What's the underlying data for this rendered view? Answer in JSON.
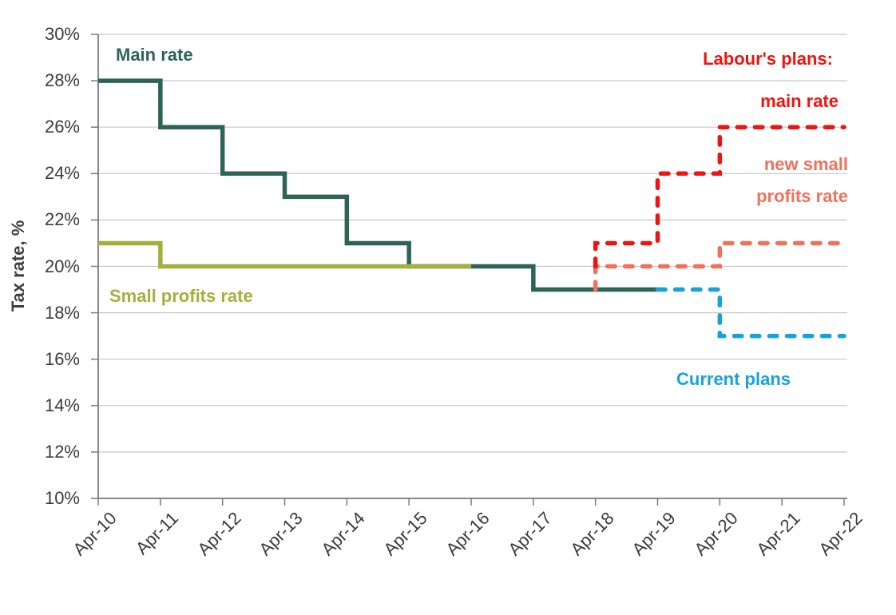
{
  "chart_data": {
    "type": "line",
    "subtype": "step-after",
    "title": "",
    "xlabel": "",
    "ylabel": "Tax rate, %",
    "ylim": [
      10,
      30
    ],
    "y_tick_step": 2,
    "grid": true,
    "y_tick_labels": [
      "30%",
      "28%",
      "26%",
      "24%",
      "22%",
      "20%",
      "18%",
      "16%",
      "14%",
      "12%",
      "10%"
    ],
    "categories": [
      "Apr-10",
      "Apr-11",
      "Apr-12",
      "Apr-13",
      "Apr-14",
      "Apr-15",
      "Apr-16",
      "Apr-17",
      "Apr-18",
      "Apr-19",
      "Apr-20",
      "Apr-21",
      "Apr-22"
    ],
    "series": [
      {
        "name": "Main rate",
        "color": "#2e6456",
        "style": "solid",
        "points": [
          [
            0,
            28
          ],
          [
            1,
            26
          ],
          [
            2,
            24
          ],
          [
            3,
            23
          ],
          [
            4,
            21
          ],
          [
            5,
            20
          ],
          [
            7,
            19
          ],
          [
            9,
            19
          ]
        ]
      },
      {
        "name": "Small profits rate",
        "color": "#a2b13d",
        "style": "solid",
        "points": [
          [
            0,
            21
          ],
          [
            1,
            20
          ],
          [
            6,
            20
          ]
        ]
      },
      {
        "name": "Current plans",
        "color": "#16a3dd",
        "style": "dashed",
        "points": [
          [
            9,
            19
          ],
          [
            10,
            17
          ],
          [
            12,
            17
          ]
        ]
      },
      {
        "name": "Labour's plans: new small profits rate",
        "color": "#f0715c",
        "style": "dashed",
        "points": [
          [
            8,
            19
          ],
          [
            8,
            20
          ],
          [
            10,
            21
          ],
          [
            12,
            21
          ]
        ]
      },
      {
        "name": "Labour's plans: main rate",
        "color": "#ee1411",
        "style": "dashed",
        "points": [
          [
            8,
            20
          ],
          [
            8,
            21
          ],
          [
            9,
            24
          ],
          [
            10,
            26
          ],
          [
            12,
            26
          ]
        ]
      }
    ],
    "legend_position": "none",
    "axis_color": "#7a7a7a",
    "grid_color": "#c6c6c6"
  },
  "annotations": {
    "main_rate": "Main rate",
    "small_profits_rate": "Small profits rate",
    "labour_plans": "Labour's plans:",
    "labour_main_rate": "main rate",
    "labour_small_profits": "new small\nprofits rate",
    "current_plans": "Current plans"
  }
}
